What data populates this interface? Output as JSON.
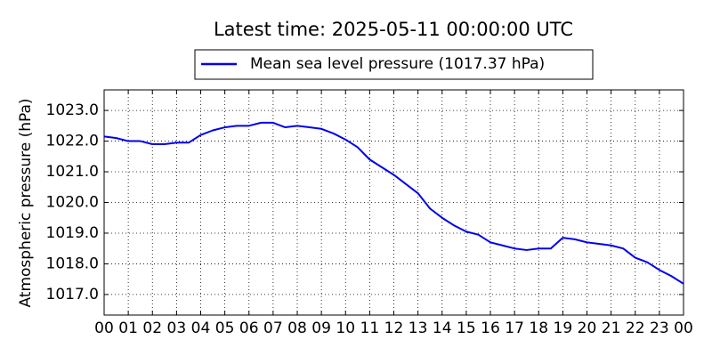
{
  "chart_data": {
    "type": "line",
    "title": "Latest time: 2025-05-11 00:00:00 UTC",
    "ylabel": "Atmospheric pressure (hPa)",
    "x": [
      0,
      0.5,
      1,
      1.5,
      2,
      2.5,
      3,
      3.5,
      4,
      4.5,
      5,
      5.5,
      6,
      6.5,
      7,
      7.5,
      8,
      8.5,
      9,
      9.5,
      10,
      10.5,
      11,
      11.5,
      12,
      12.5,
      13,
      13.5,
      14,
      14.5,
      15,
      15.5,
      16,
      16.5,
      17,
      17.5,
      18,
      18.5,
      19,
      19.5,
      20,
      20.5,
      21,
      21.5,
      22,
      22.5,
      23,
      23.5,
      24
    ],
    "series": [
      {
        "name": "Mean sea level pressure (1017.37 hPa)",
        "color": "#0000ee",
        "values": [
          1022.15,
          1022.1,
          1022.0,
          1022.0,
          1021.9,
          1021.9,
          1021.95,
          1021.95,
          1022.2,
          1022.35,
          1022.45,
          1022.5,
          1022.5,
          1022.6,
          1022.6,
          1022.45,
          1022.5,
          1022.45,
          1022.4,
          1022.25,
          1022.05,
          1021.8,
          1021.4,
          1021.15,
          1020.9,
          1020.6,
          1020.3,
          1019.8,
          1019.5,
          1019.25,
          1019.05,
          1018.95,
          1018.7,
          1018.6,
          1018.5,
          1018.45,
          1018.5,
          1018.5,
          1018.85,
          1018.8,
          1018.7,
          1018.65,
          1018.6,
          1018.5,
          1018.2,
          1018.05,
          1017.8,
          1017.6,
          1017.35
        ]
      }
    ],
    "xlim": [
      0,
      24
    ],
    "xticks": [
      {
        "value": 0,
        "label": "00"
      },
      {
        "value": 1,
        "label": "01"
      },
      {
        "value": 2,
        "label": "02"
      },
      {
        "value": 3,
        "label": "03"
      },
      {
        "value": 4,
        "label": "04"
      },
      {
        "value": 5,
        "label": "05"
      },
      {
        "value": 6,
        "label": "06"
      },
      {
        "value": 7,
        "label": "07"
      },
      {
        "value": 8,
        "label": "08"
      },
      {
        "value": 9,
        "label": "09"
      },
      {
        "value": 10,
        "label": "10"
      },
      {
        "value": 11,
        "label": "11"
      },
      {
        "value": 12,
        "label": "12"
      },
      {
        "value": 13,
        "label": "13"
      },
      {
        "value": 14,
        "label": "14"
      },
      {
        "value": 15,
        "label": "15"
      },
      {
        "value": 16,
        "label": "16"
      },
      {
        "value": 17,
        "label": "17"
      },
      {
        "value": 18,
        "label": "18"
      },
      {
        "value": 19,
        "label": "19"
      },
      {
        "value": 20,
        "label": "20"
      },
      {
        "value": 21,
        "label": "21"
      },
      {
        "value": 22,
        "label": "22"
      },
      {
        "value": 23,
        "label": "23"
      },
      {
        "value": 24,
        "label": "00"
      }
    ],
    "ylim": [
      1016.33,
      1023.67
    ],
    "yticks": [
      {
        "value": 1017,
        "label": "1017.0"
      },
      {
        "value": 1018,
        "label": "1018.0"
      },
      {
        "value": 1019,
        "label": "1019.0"
      },
      {
        "value": 1020,
        "label": "1020.0"
      },
      {
        "value": 1021,
        "label": "1021.0"
      },
      {
        "value": 1022,
        "label": "1022.0"
      },
      {
        "value": 1023,
        "label": "1023.0"
      }
    ],
    "grid": true,
    "legend": "top"
  }
}
